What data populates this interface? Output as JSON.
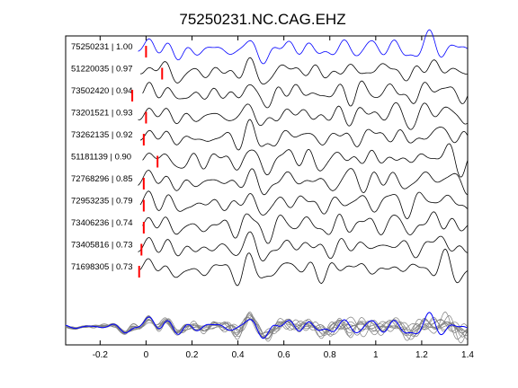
{
  "chart_data": {
    "type": "line",
    "title": "75250231.NC.CAG.EHZ",
    "xlabel": "",
    "ylabel": "",
    "xlim": [
      -0.35,
      1.4
    ],
    "xticks": [
      -0.2,
      0,
      0.2,
      0.4,
      0.6,
      0.8,
      1,
      1.2,
      1.4
    ],
    "xtick_labels": [
      "-0.2",
      "0",
      "0.2",
      "0.4",
      "0.6",
      "0.8",
      "1",
      "1.2",
      "1.4"
    ],
    "grid": false,
    "colors": {
      "reference": "#0000ff",
      "trace": "#000000",
      "pick": "#ff0000",
      "stack": "#808080"
    },
    "series": [
      {
        "label": "75250231 | 1.00",
        "pick_time": 0.0,
        "reference": true
      },
      {
        "label": "51220035 | 0.97",
        "pick_time": 0.07
      },
      {
        "label": "73502420 | 0.94",
        "pick_time": -0.06
      },
      {
        "label": "73201521 | 0.93",
        "pick_time": 0.0
      },
      {
        "label": "73262135 | 0.92",
        "pick_time": -0.01
      },
      {
        "label": "51181139 | 0.90",
        "pick_time": 0.05
      },
      {
        "label": "72768296 | 0.85",
        "pick_time": -0.01
      },
      {
        "label": "72953235 | 0.79",
        "pick_time": -0.01
      },
      {
        "label": "73406236 | 0.74",
        "pick_time": -0.01
      },
      {
        "label": "73405816 | 0.73",
        "pick_time": -0.02
      },
      {
        "label": "71698305 | 0.73",
        "pick_time": -0.03
      }
    ],
    "stack_panel": {
      "traces": 11,
      "overlay_reference": true
    }
  }
}
